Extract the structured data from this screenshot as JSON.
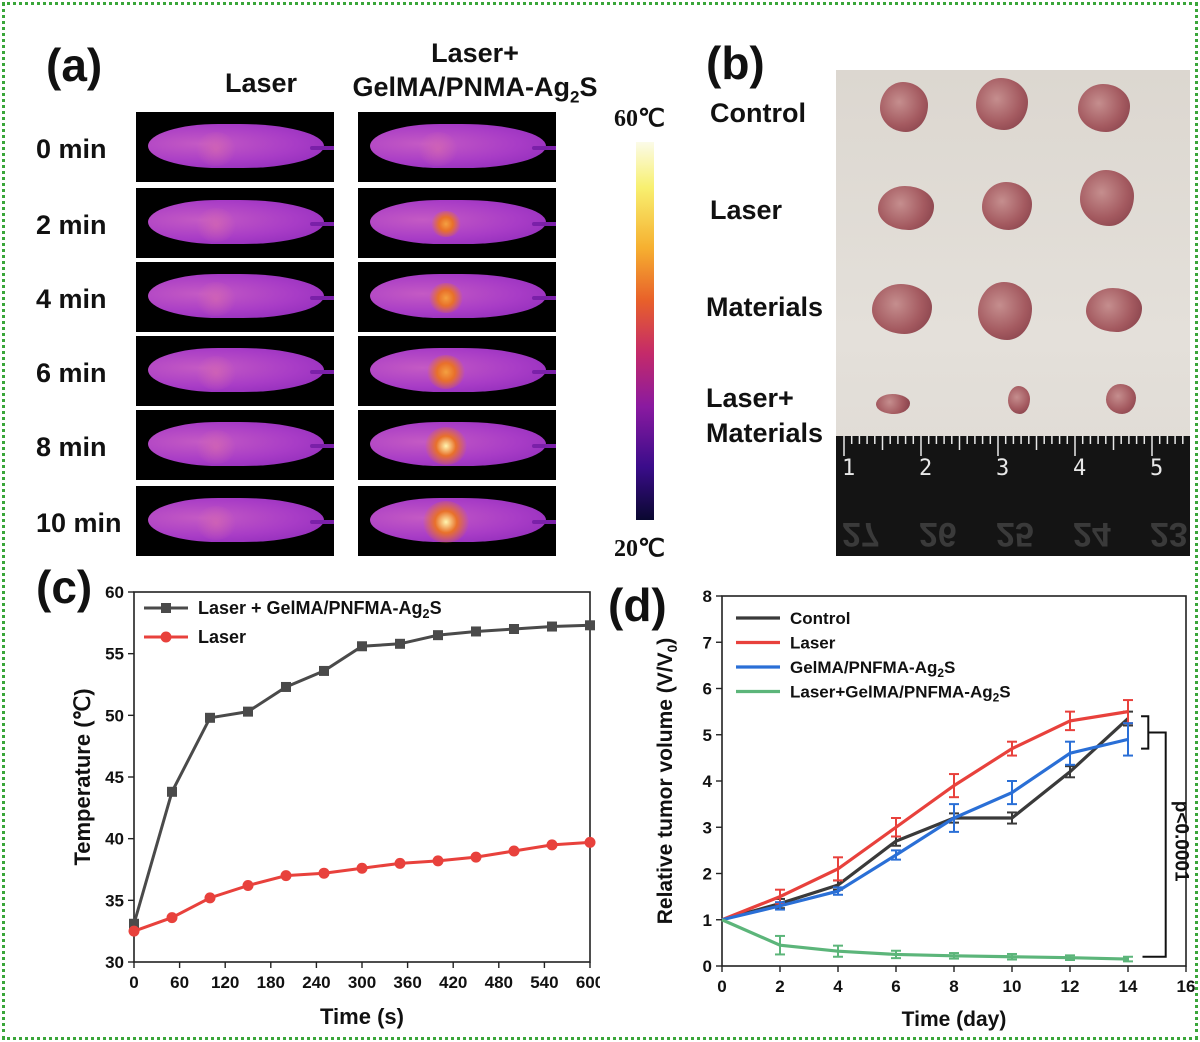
{
  "panels": {
    "a": "(a)",
    "b": "(b)",
    "c": "(c)",
    "d": "(d)"
  },
  "panel_a": {
    "col_laser": "Laser",
    "col_combo_line1": "Laser+",
    "col_combo_line2": "GelMA/PNMA-Ag",
    "col_combo_sub": "2",
    "col_combo_end": "S",
    "rows": [
      "0 min",
      "2 min",
      "4 min",
      "6 min",
      "8 min",
      "10 min"
    ],
    "hotspot_intensity_combo": [
      0.0,
      0.35,
      0.55,
      0.7,
      0.85,
      1.0
    ],
    "colorbar_max": "60℃",
    "colorbar_min": "20℃"
  },
  "panel_b": {
    "rows": [
      "Control",
      "Laser",
      "Materials",
      "Laser+",
      "Materials"
    ],
    "ruler_top": [
      "1",
      "2",
      "3",
      "4",
      "5"
    ],
    "ruler_bottom": [
      "27",
      "26",
      "25",
      "24",
      "23"
    ]
  },
  "chart_data": [
    {
      "type": "line",
      "panel": "c",
      "xlabel": "Time (s)",
      "ylabel": "Temperature (℃)",
      "xlim": [
        0,
        600
      ],
      "ylim": [
        30,
        60
      ],
      "xticks": [
        0,
        60,
        120,
        180,
        240,
        300,
        360,
        420,
        480,
        540,
        600
      ],
      "yticks": [
        30,
        35,
        40,
        45,
        50,
        55,
        60
      ],
      "legend_position": "top-left",
      "series": [
        {
          "name": "Laser + GelMA/PNFMA-Ag2S",
          "legend_main": "Laser + GelMA/PNFMA-Ag",
          "legend_sub": "2",
          "legend_end": "S",
          "color": "#4a4a4a",
          "marker": "square",
          "x": [
            0,
            50,
            100,
            150,
            200,
            250,
            300,
            350,
            400,
            450,
            500,
            550,
            600
          ],
          "y": [
            33.1,
            43.8,
            49.8,
            50.3,
            52.3,
            53.6,
            55.6,
            55.8,
            56.5,
            56.8,
            57.0,
            57.2,
            57.3
          ]
        },
        {
          "name": "Laser",
          "legend_main": "Laser",
          "color": "#e8413c",
          "marker": "circle",
          "x": [
            0,
            50,
            100,
            150,
            200,
            250,
            300,
            350,
            400,
            450,
            500,
            550,
            600
          ],
          "y": [
            32.5,
            33.6,
            35.2,
            36.2,
            37.0,
            37.2,
            37.6,
            38.0,
            38.2,
            38.5,
            39.0,
            39.5,
            39.7
          ]
        }
      ]
    },
    {
      "type": "line",
      "panel": "d",
      "xlabel": "Time (day)",
      "ylabel": "Relative tumor volume (V/V0)",
      "ylabel_main": "Relative tumor volume (V/V",
      "ylabel_sub": "0",
      "ylabel_end": ")",
      "xlim": [
        0,
        16
      ],
      "ylim": [
        0,
        8
      ],
      "xticks": [
        0,
        2,
        4,
        6,
        8,
        10,
        12,
        14,
        16
      ],
      "yticks": [
        0,
        1,
        2,
        3,
        4,
        5,
        6,
        7,
        8
      ],
      "legend_position": "top-left",
      "annotation": "p<0.0001",
      "series": [
        {
          "name": "Control",
          "legend_main": "Control",
          "color": "#3a3a3a",
          "x": [
            0,
            2,
            4,
            6,
            8,
            10,
            12,
            14
          ],
          "y": [
            1.0,
            1.35,
            1.75,
            2.7,
            3.2,
            3.2,
            4.2,
            5.35
          ],
          "err": [
            0,
            0.1,
            0.1,
            0.1,
            0.1,
            0.12,
            0.12,
            0.15
          ]
        },
        {
          "name": "Laser",
          "legend_main": "Laser",
          "color": "#e8413c",
          "x": [
            0,
            2,
            4,
            6,
            8,
            10,
            12,
            14
          ],
          "y": [
            1.0,
            1.5,
            2.1,
            3.0,
            3.9,
            4.7,
            5.3,
            5.5
          ],
          "err": [
            0,
            0.15,
            0.25,
            0.2,
            0.25,
            0.15,
            0.2,
            0.25
          ]
        },
        {
          "name": "GelMA/PNFMA-Ag2S",
          "legend_main": "GelMA/PNFMA-Ag",
          "legend_sub": "2",
          "legend_end": "S",
          "color": "#2a6fd6",
          "x": [
            0,
            2,
            4,
            6,
            8,
            10,
            12,
            14
          ],
          "y": [
            1.0,
            1.3,
            1.62,
            2.4,
            3.2,
            3.75,
            4.6,
            4.9
          ],
          "err": [
            0,
            0.08,
            0.08,
            0.1,
            0.3,
            0.25,
            0.25,
            0.35
          ]
        },
        {
          "name": "Laser+GelMA/PNFMA-Ag2S",
          "legend_main": "Laser+GelMA/PNFMA-Ag",
          "legend_sub": "2",
          "legend_end": "S",
          "color": "#5cb57a",
          "x": [
            0,
            2,
            4,
            6,
            8,
            10,
            12,
            14
          ],
          "y": [
            1.0,
            0.45,
            0.32,
            0.25,
            0.22,
            0.2,
            0.18,
            0.15
          ],
          "err": [
            0,
            0.2,
            0.12,
            0.08,
            0.06,
            0.06,
            0.05,
            0.05
          ]
        }
      ]
    }
  ]
}
